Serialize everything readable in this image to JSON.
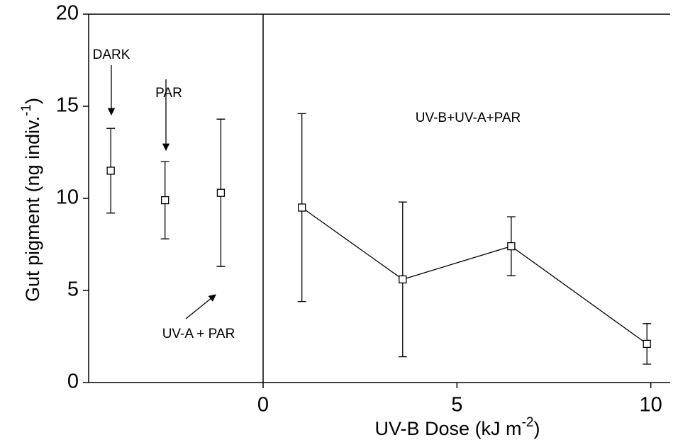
{
  "chart_data": {
    "type": "errorbar",
    "xlim": [
      -4.5,
      10.5
    ],
    "ylim": [
      0,
      20
    ],
    "xticks": [
      0,
      5,
      10
    ],
    "yticks": [
      0,
      5,
      10,
      15,
      20
    ],
    "y_label": {
      "text": "Gut pigment (ng indiv.",
      "sup": "-1",
      "end": ")"
    },
    "x_label": {
      "text": "UV-B Dose (kJ m",
      "sup": "-2",
      "end": ")"
    },
    "annotations": [
      "DARK",
      "PAR",
      "UV-A + PAR",
      "UV-B+UV-A+PAR"
    ],
    "series": [
      {
        "color": "#000000",
        "line": false,
        "x": [
          -3.93,
          -2.53,
          -1.09
        ],
        "values": [
          11.5,
          9.9,
          10.3
        ],
        "errors": [
          2.3,
          2.1,
          4.0
        ]
      },
      {
        "color": "#000000",
        "line": true,
        "x": [
          1.0,
          3.6,
          6.4,
          9.9
        ],
        "values": [
          9.5,
          5.6,
          7.4,
          2.1
        ],
        "errors": [
          5.1,
          4.2,
          1.6,
          1.1
        ]
      }
    ]
  }
}
